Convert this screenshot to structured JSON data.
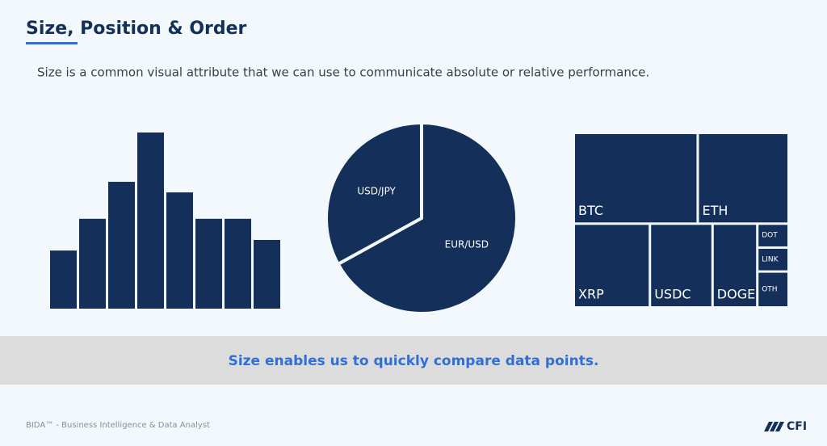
{
  "header": {
    "title": "Size, Position & Order",
    "subtitle": "Size is a common visual attribute that we can use to communicate absolute or relative performance."
  },
  "chart_data": [
    {
      "type": "bar",
      "categories": [
        null,
        null,
        null,
        null,
        null,
        null,
        null,
        null
      ],
      "values": [
        33,
        51,
        72,
        100,
        66,
        51,
        51,
        39
      ],
      "color": "#14305a"
    },
    {
      "type": "pie",
      "categories": [
        "EUR/USD",
        "USD/JPY"
      ],
      "values": [
        67,
        33
      ],
      "color": "#14305a"
    },
    {
      "type": "treemap",
      "categories": [
        "BTC",
        "ETH",
        "XRP",
        "USDC",
        "DOGE",
        "DOT",
        "LINK",
        "OTH"
      ],
      "values": [
        30,
        22,
        17,
        14,
        10,
        2,
        2,
        3
      ],
      "color": "#14305a"
    }
  ],
  "callout": "Size enables us to quickly compare data points.",
  "footer": {
    "text": "BIDA™ - Business Intelligence & Data Analyst",
    "logo": "CFI"
  }
}
